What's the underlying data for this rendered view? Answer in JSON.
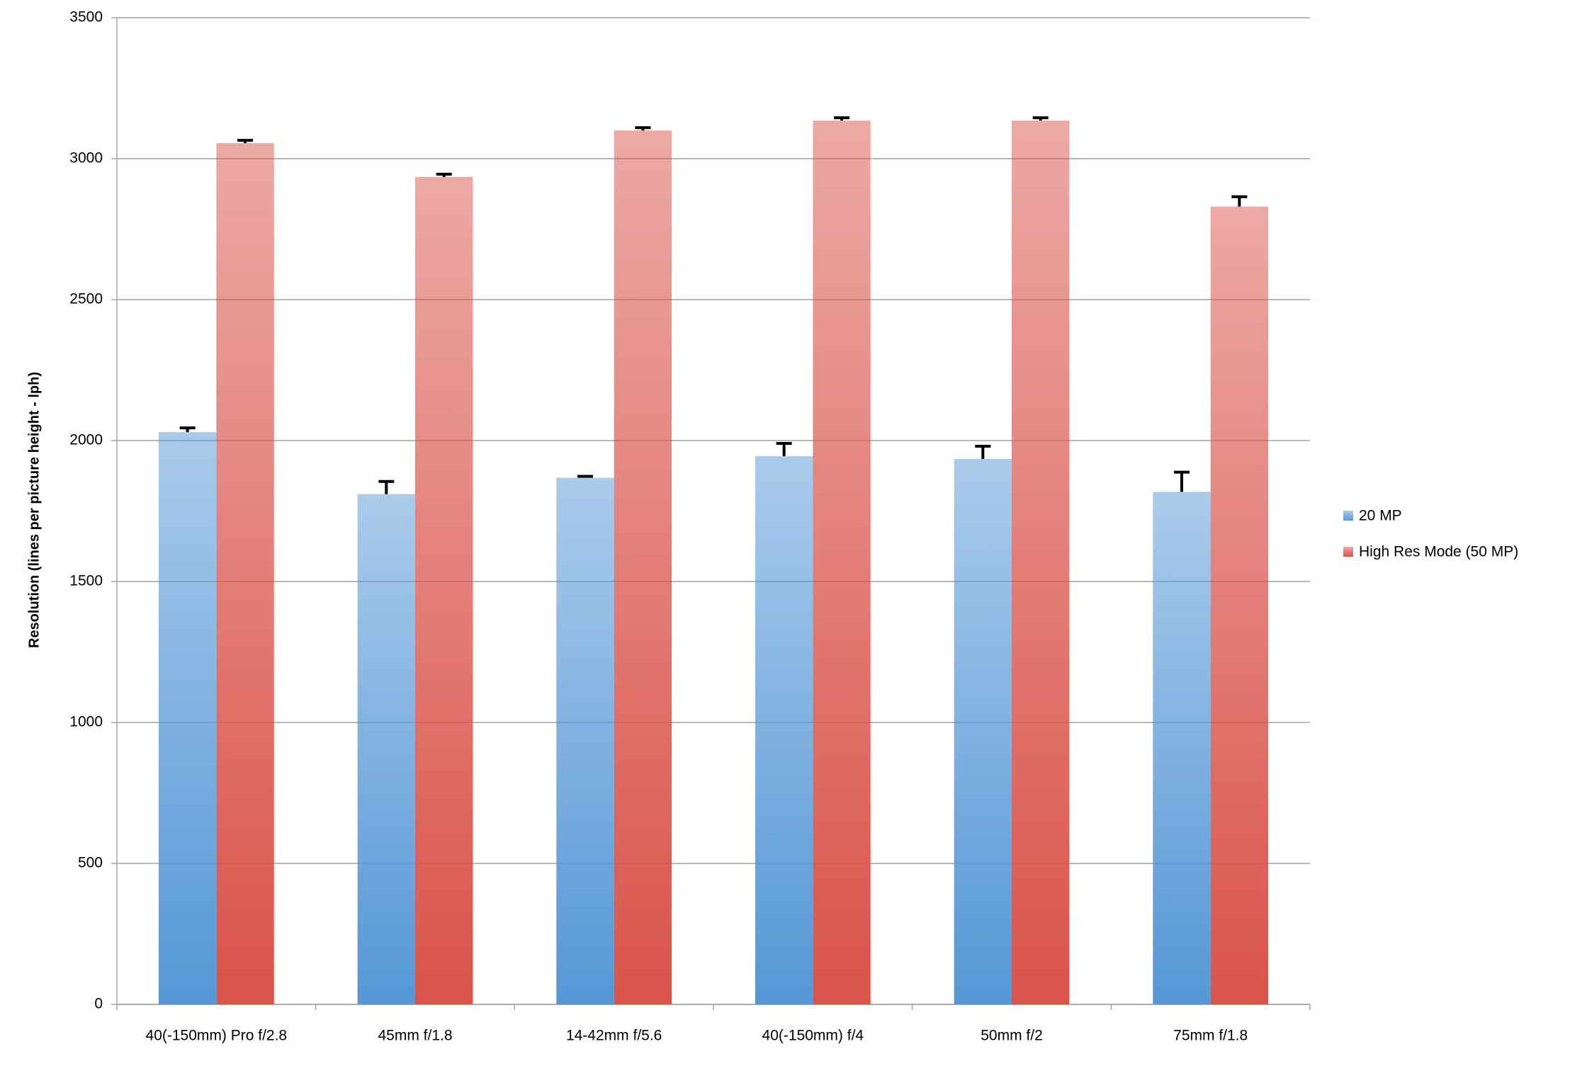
{
  "chart_data": {
    "type": "bar",
    "y_label": "Resolution (lines per picture height - lph)",
    "categories": [
      "40(-150mm) Pro f/2.8",
      "45mm f/1.8",
      "14-42mm f/5.6",
      "40(-150mm) f/4",
      "50mm f/2",
      "75mm f/1.8"
    ],
    "series": [
      {
        "name": "20 MP",
        "color": "#5597d6",
        "values": [
          2030,
          1810,
          1868,
          1945,
          1935,
          1818
        ],
        "errors": [
          15,
          45,
          5,
          45,
          45,
          70
        ]
      },
      {
        "name": "High Res Mode (50 MP)",
        "color": "#d9534a",
        "values": [
          3055,
          2935,
          3100,
          3135,
          3135,
          2830
        ],
        "errors": [
          10,
          10,
          10,
          10,
          10,
          35
        ]
      }
    ],
    "ylim": [
      0,
      3500
    ],
    "yticks": [
      0,
      500,
      1000,
      1500,
      2000,
      2500,
      3000,
      3500
    ],
    "grid": true,
    "legend": "right"
  }
}
